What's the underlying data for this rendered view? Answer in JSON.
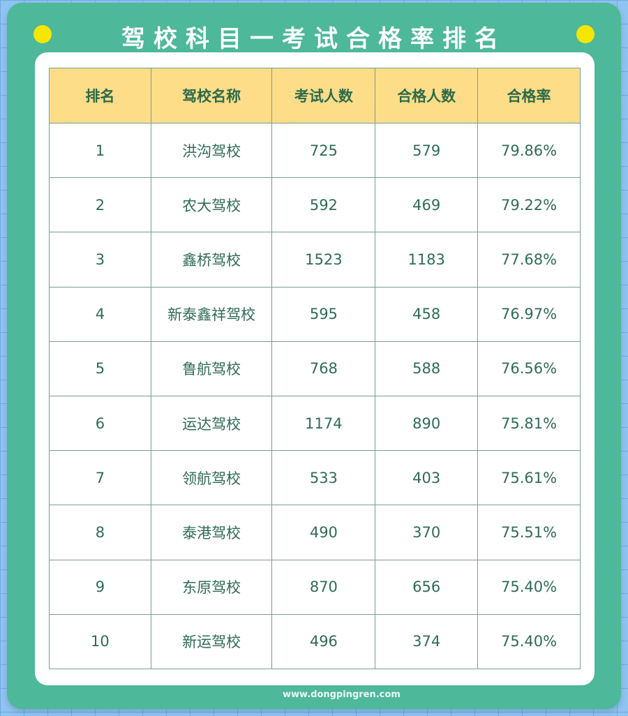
{
  "title": "驾校科目一考试合格率排名",
  "columns": [
    "排名",
    "驾校名称",
    "考试人数",
    "合格人数",
    "合格率"
  ],
  "rows": [
    [
      "1",
      "洪沟驾校",
      "725",
      "579",
      "79.86%"
    ],
    [
      "2",
      "农大驾校",
      "592",
      "469",
      "79.22%"
    ],
    [
      "3",
      "鑫桥驾校",
      "1523",
      "1183",
      "77.68%"
    ],
    [
      "4",
      "新泰鑫祥驾校",
      "595",
      "458",
      "76.97%"
    ],
    [
      "5",
      "鲁航驾校",
      "768",
      "588",
      "76.56%"
    ],
    [
      "6",
      "运达驾校",
      "1174",
      "890",
      "75.81%"
    ],
    [
      "7",
      "领航驾校",
      "533",
      "403",
      "75.61%"
    ],
    [
      "8",
      "泰港驾校",
      "490",
      "370",
      "75.51%"
    ],
    [
      "9",
      "东原驾校",
      "870",
      "656",
      "75.40%"
    ],
    [
      "10",
      "新运驾校",
      "496",
      "374",
      "75.40%"
    ]
  ],
  "watermark": "www.dongpingren.com",
  "colors": {
    "card": "#4db89a",
    "header": "#fedd89",
    "text": "#2f6b55",
    "dot": "#f7e600"
  }
}
